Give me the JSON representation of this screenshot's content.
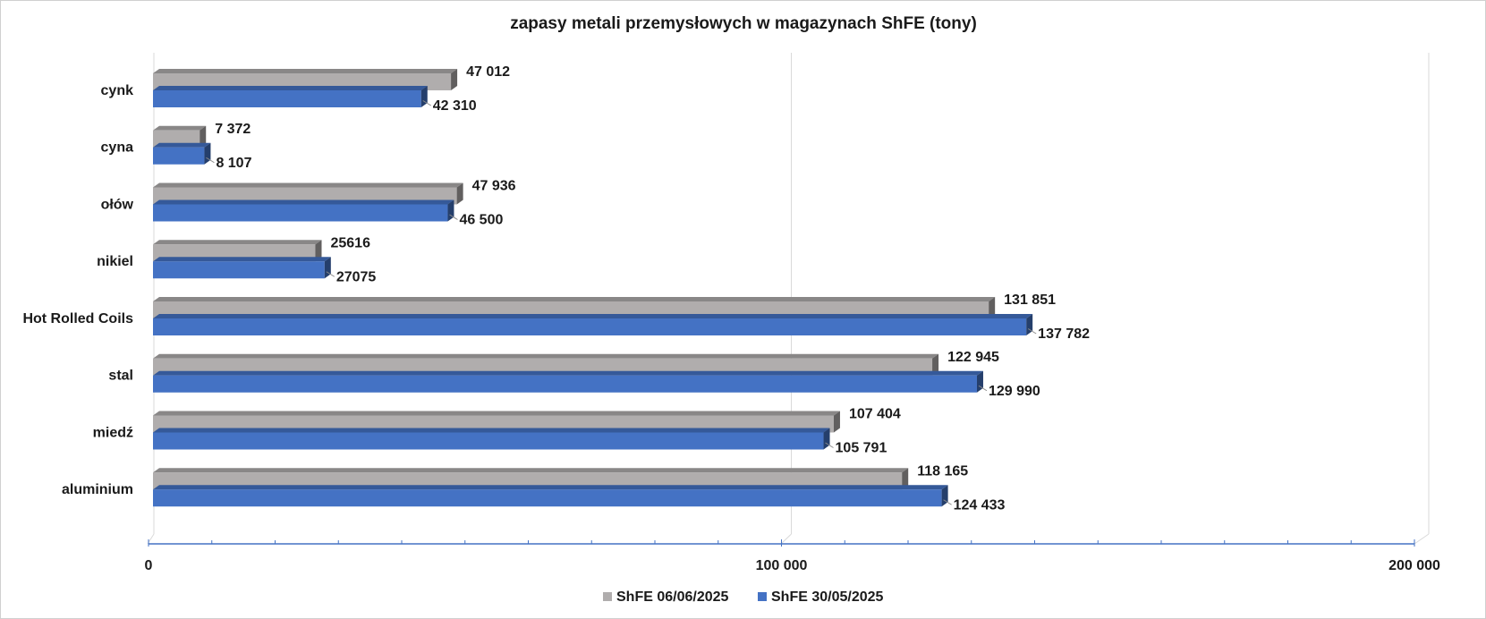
{
  "chart_data": {
    "type": "bar",
    "orientation": "horizontal",
    "title": "zapasy metali przemysłowych w magazynach ShFE (tony)",
    "categories": [
      "cynk",
      "cyna",
      "ołów",
      "nikiel",
      "Hot Rolled Coils",
      "stal",
      "miedź",
      "aluminium"
    ],
    "series": [
      {
        "name": "ShFE 06/06/2025",
        "color": "#b0adad",
        "values": [
          47012,
          7372,
          47936,
          25616,
          131851,
          122945,
          107404,
          118165
        ],
        "labels": [
          "47 012",
          "7 372",
          "47 936",
          "25616",
          "131 851",
          "122 945",
          "107 404",
          "118 165"
        ]
      },
      {
        "name": "ShFE 30/05/2025",
        "color": "#4472c4",
        "values": [
          42310,
          8107,
          46500,
          27075,
          137782,
          129990,
          105791,
          124433
        ],
        "labels": [
          "42 310",
          "8 107",
          "46 500",
          "27075",
          "137 782",
          "129 990",
          "105 791",
          "124 433"
        ]
      }
    ],
    "xlim": [
      0,
      200000
    ],
    "xticks": [
      {
        "value": 0,
        "label": "0"
      },
      {
        "value": 100000,
        "label": "100 000"
      },
      {
        "value": 200000,
        "label": "200 000"
      }
    ],
    "grid": "vertical major gridlines",
    "legend_position": "bottom"
  }
}
